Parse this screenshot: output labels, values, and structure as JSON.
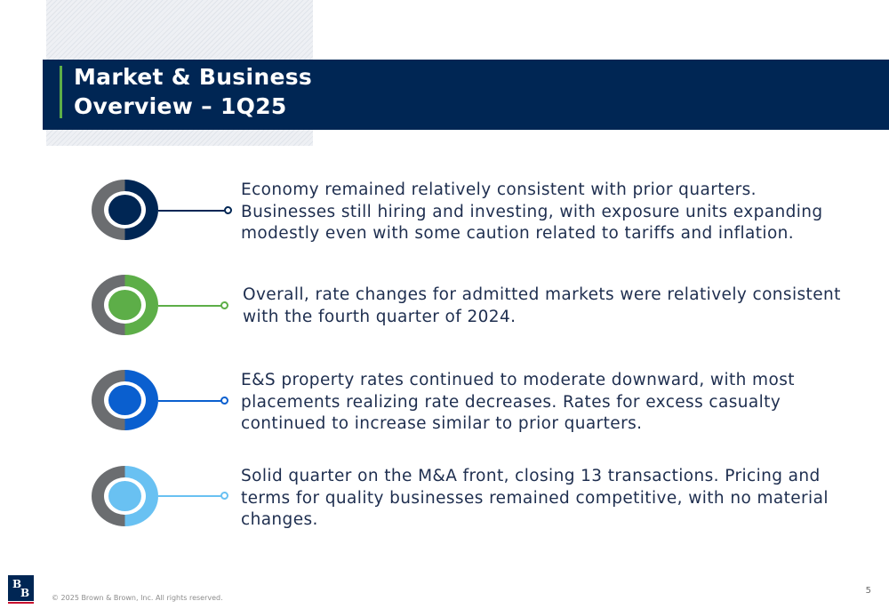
{
  "slide": {
    "title_line1": "Market & Business",
    "title_line2": "Overview – 1Q25"
  },
  "items": [
    {
      "text": "Economy remained relatively consistent with prior quarters. Businesses still hiring and investing, with exposure units expanding modestly even with some caution related to tariffs and inflation.",
      "accent_color": "#002654"
    },
    {
      "text": "Overall, rate changes for admitted markets were relatively consistent with the fourth quarter of 2024.",
      "accent_color": "#5dae48"
    },
    {
      "text": "E&S property rates continued to moderate downward, with most placements realizing rate decreases. Rates for excess casualty continued to increase similar to prior quarters.",
      "accent_color": "#0a5fcf"
    },
    {
      "text": "Solid quarter on the M&A front, closing 13 transactions.  Pricing and terms for quality businesses remained competitive, with no material changes.",
      "accent_color": "#69c1f2"
    }
  ],
  "icons": {
    "ring_base_color": "#6b6d70",
    "ring": "donut-ring-icon"
  },
  "footer": {
    "logo_letter_1": "B",
    "logo_letter_2": "B",
    "copyright": "© 2025 Brown & Brown, Inc. All rights reserved.",
    "page_number": "5"
  }
}
